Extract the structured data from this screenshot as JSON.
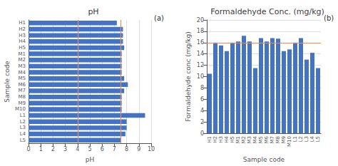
{
  "chart_data": [
    {
      "type": "bar",
      "orientation": "horizontal",
      "title": "pH",
      "xlabel": "pH",
      "ylabel": "Sample code",
      "categories": [
        "L5",
        "L4",
        "L3",
        "L2",
        "L1",
        "M10",
        "M9",
        "M8",
        "M7",
        "M6",
        "M5",
        "M4",
        "M3",
        "M2",
        "M1",
        "H5",
        "H4",
        "H3",
        "H2",
        "H1"
      ],
      "values": [
        7.5,
        7.9,
        8.0,
        8.0,
        9.5,
        7.6,
        7.6,
        7.6,
        7.8,
        8.1,
        7.8,
        7.6,
        7.6,
        7.6,
        7.6,
        7.8,
        7.7,
        7.7,
        7.7,
        7.2
      ],
      "color": "#4472C4",
      "xlim": [
        0,
        10
      ],
      "xticks": [
        0,
        1,
        2,
        3,
        4,
        5,
        6,
        7,
        8,
        9,
        10
      ],
      "grid": true,
      "reference_lines": [
        {
          "value": 4.0,
          "color": "#D4956A"
        },
        {
          "value": 7.5,
          "color": "#D4956A"
        }
      ],
      "annotation": "(a)"
    },
    {
      "type": "bar",
      "title": "Formaldehyde Conc. (mg/kg)",
      "xlabel": "Sample code",
      "ylabel": "Formaldehyde conc (mg/kg)",
      "categories": [
        "H1",
        "H2",
        "H3",
        "H4",
        "H5",
        "M1",
        "M2",
        "M3",
        "M4",
        "M5",
        "M6",
        "M7",
        "M8",
        "M9",
        "M10",
        "L1",
        "L2",
        "L3",
        "L4",
        "L5"
      ],
      "values": [
        10.5,
        16.0,
        15.5,
        14.5,
        16.0,
        16.2,
        17.2,
        16.2,
        11.5,
        16.8,
        16.2,
        16.8,
        16.7,
        14.5,
        14.8,
        16.0,
        16.8,
        13.0,
        14.2,
        11.5
      ],
      "color": "#4472C4",
      "ylim": [
        0,
        20
      ],
      "yticks": [
        0,
        2,
        4,
        6,
        8,
        10,
        12,
        14,
        16,
        18,
        20
      ],
      "grid": true,
      "reference_lines": [
        {
          "value": 16.0,
          "color": "#E89050"
        }
      ],
      "annotation": "(b)"
    }
  ]
}
